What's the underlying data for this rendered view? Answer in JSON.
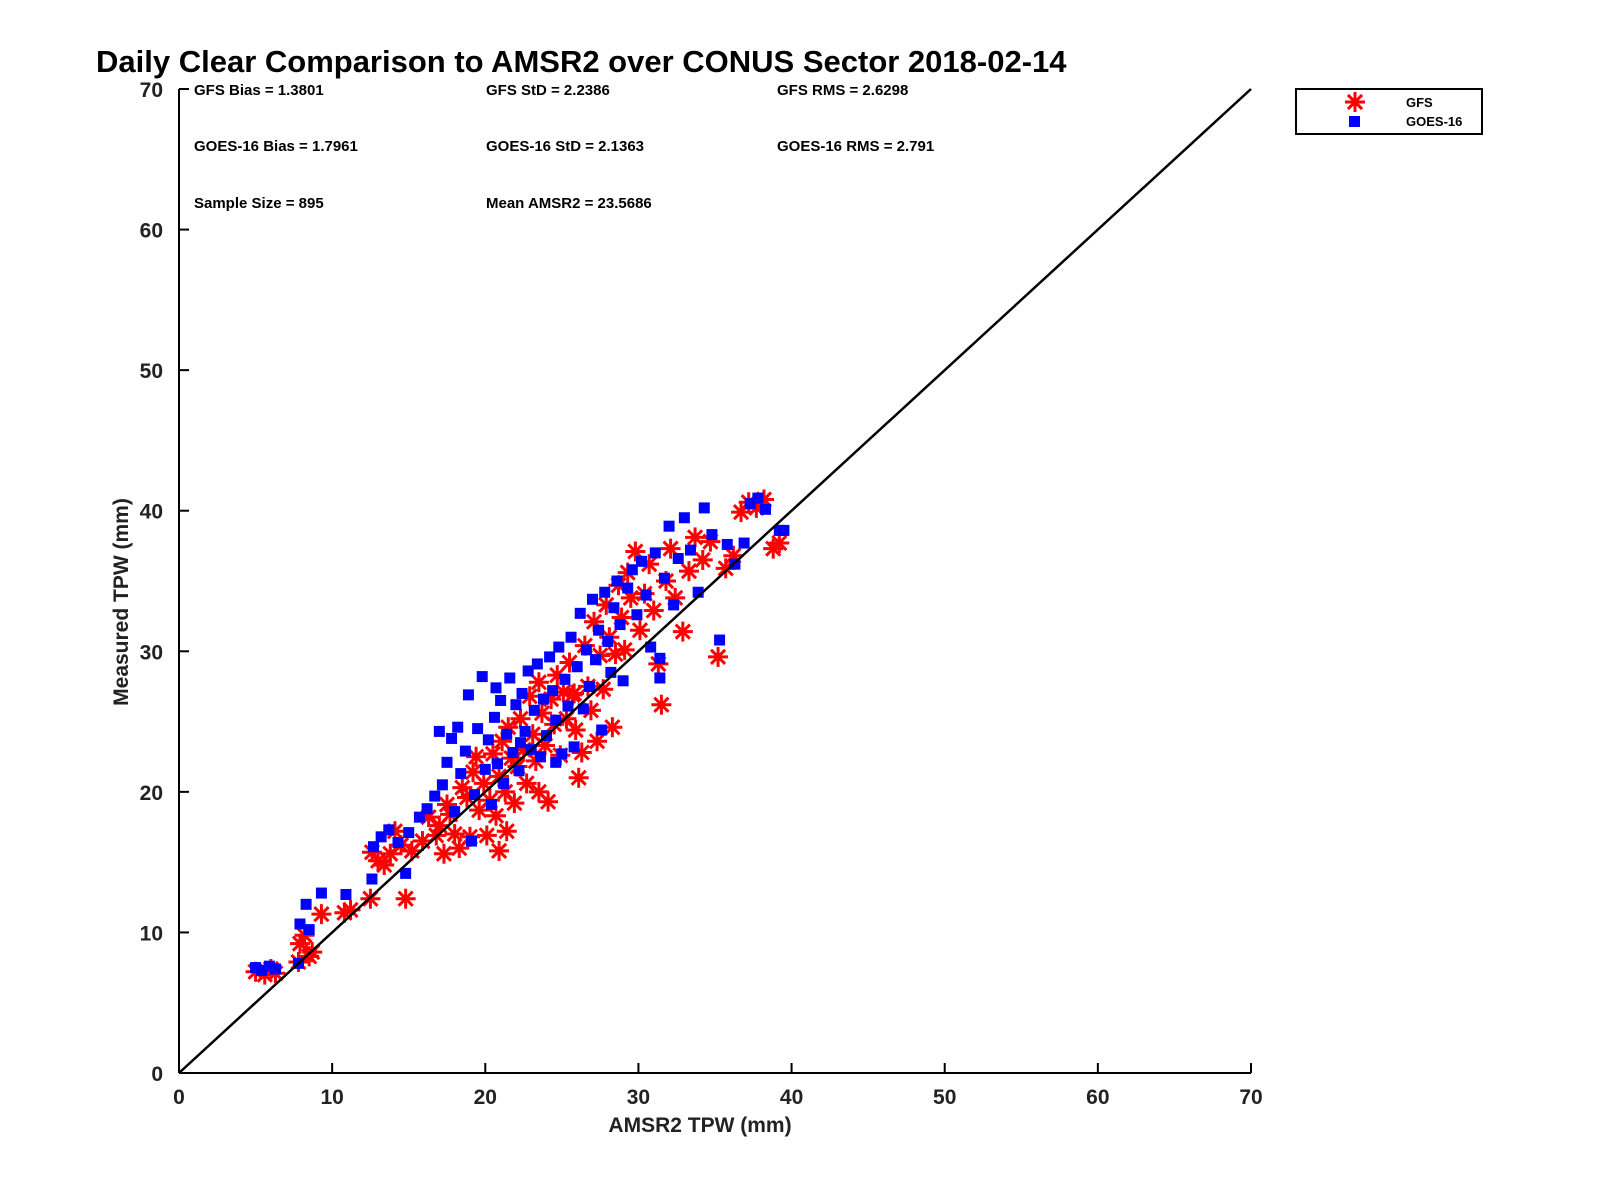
{
  "chart_data": {
    "type": "scatter",
    "title": "Daily Clear Comparison to AMSR2 over CONUS Sector 2018-02-14",
    "xlabel": "AMSR2 TPW (mm)",
    "ylabel": "Measured TPW (mm)",
    "xlim": [
      0,
      70
    ],
    "ylim": [
      0,
      70
    ],
    "xticks": [
      "0",
      "10",
      "20",
      "30",
      "40",
      "50",
      "60",
      "70"
    ],
    "yticks": [
      "0",
      "10",
      "20",
      "30",
      "40",
      "50",
      "60",
      "70"
    ],
    "grid": false,
    "legend_position": "outside-top-right",
    "reference_line": {
      "from": [
        0,
        0
      ],
      "to": [
        70,
        70
      ],
      "color": "#000000"
    },
    "annotations": [
      "GFS Bias = 1.3801",
      "GFS StD = 2.2386",
      "GFS RMS = 2.6298",
      "GOES-16 Bias = 1.7961",
      "GOES-16 StD = 2.1363",
      "GOES-16 RMS = 2.791",
      "Sample Size = 895",
      "Mean AMSR2 = 23.5686"
    ],
    "series": [
      {
        "name": "GFS",
        "marker": "asterisk",
        "color": "#ff0000",
        "points": [
          [
            5.0,
            7.2
          ],
          [
            5.6,
            7.0
          ],
          [
            6.0,
            7.4
          ],
          [
            6.3,
            7.1
          ],
          [
            7.8,
            7.9
          ],
          [
            7.9,
            9.2
          ],
          [
            8.2,
            9.8
          ],
          [
            8.5,
            8.3
          ],
          [
            8.7,
            8.6
          ],
          [
            9.3,
            11.3
          ],
          [
            10.8,
            11.4
          ],
          [
            11.2,
            11.6
          ],
          [
            12.5,
            12.4
          ],
          [
            14.8,
            12.4
          ],
          [
            12.6,
            15.7
          ],
          [
            13.0,
            15.1
          ],
          [
            13.4,
            14.8
          ],
          [
            13.8,
            15.6
          ],
          [
            14.1,
            17.2
          ],
          [
            14.5,
            16.2
          ],
          [
            15.2,
            15.8
          ],
          [
            15.9,
            16.5
          ],
          [
            16.3,
            18.2
          ],
          [
            16.8,
            16.9
          ],
          [
            17.0,
            17.6
          ],
          [
            17.3,
            15.6
          ],
          [
            17.5,
            19.1
          ],
          [
            17.7,
            18.4
          ],
          [
            18.0,
            17.0
          ],
          [
            18.3,
            16.0
          ],
          [
            18.5,
            20.3
          ],
          [
            18.8,
            19.6
          ],
          [
            19.0,
            16.8
          ],
          [
            19.2,
            21.4
          ],
          [
            19.4,
            22.5
          ],
          [
            19.6,
            18.7
          ],
          [
            19.9,
            20.6
          ],
          [
            20.1,
            16.9
          ],
          [
            20.3,
            19.4
          ],
          [
            20.5,
            22.7
          ],
          [
            20.7,
            18.3
          ],
          [
            20.9,
            21.1
          ],
          [
            21.1,
            23.6
          ],
          [
            21.3,
            20.0
          ],
          [
            21.5,
            24.6
          ],
          [
            21.7,
            22.4
          ],
          [
            21.9,
            19.2
          ],
          [
            22.1,
            21.8
          ],
          [
            22.3,
            25.2
          ],
          [
            22.5,
            23.0
          ],
          [
            22.7,
            20.6
          ],
          [
            22.9,
            26.8
          ],
          [
            23.1,
            24.1
          ],
          [
            23.3,
            22.2
          ],
          [
            23.5,
            27.8
          ],
          [
            23.7,
            25.6
          ],
          [
            23.9,
            23.3
          ],
          [
            24.1,
            19.3
          ],
          [
            24.3,
            26.6
          ],
          [
            24.5,
            24.8
          ],
          [
            24.7,
            28.3
          ],
          [
            24.9,
            22.6
          ],
          [
            25.1,
            27.1
          ],
          [
            25.3,
            25.2
          ],
          [
            25.5,
            29.2
          ],
          [
            25.7,
            26.9
          ],
          [
            25.9,
            24.4
          ],
          [
            26.1,
            21.0
          ],
          [
            26.3,
            22.8
          ],
          [
            26.5,
            30.4
          ],
          [
            26.7,
            27.5
          ],
          [
            26.9,
            25.8
          ],
          [
            27.1,
            32.1
          ],
          [
            27.3,
            23.6
          ],
          [
            27.5,
            29.7
          ],
          [
            27.7,
            27.3
          ],
          [
            27.9,
            33.3
          ],
          [
            28.1,
            31.0
          ],
          [
            28.3,
            24.6
          ],
          [
            28.5,
            29.8
          ],
          [
            28.7,
            34.7
          ],
          [
            28.9,
            32.4
          ],
          [
            29.1,
            30.1
          ],
          [
            29.3,
            35.6
          ],
          [
            29.5,
            33.8
          ],
          [
            29.8,
            37.1
          ],
          [
            30.1,
            31.5
          ],
          [
            30.4,
            34.1
          ],
          [
            30.7,
            36.2
          ],
          [
            31.0,
            32.9
          ],
          [
            31.3,
            29.1
          ],
          [
            31.5,
            26.2
          ],
          [
            31.8,
            35.0
          ],
          [
            32.1,
            37.3
          ],
          [
            32.4,
            33.8
          ],
          [
            32.9,
            31.4
          ],
          [
            33.3,
            35.7
          ],
          [
            33.7,
            38.1
          ],
          [
            34.2,
            36.5
          ],
          [
            34.7,
            37.8
          ],
          [
            35.2,
            29.6
          ],
          [
            35.7,
            35.9
          ],
          [
            36.2,
            36.8
          ],
          [
            36.7,
            39.9
          ],
          [
            37.2,
            40.6
          ],
          [
            37.7,
            40.2
          ],
          [
            38.2,
            40.8
          ],
          [
            38.8,
            37.3
          ],
          [
            39.2,
            37.7
          ],
          [
            21.4,
            17.2
          ],
          [
            20.9,
            15.8
          ],
          [
            23.5,
            20.0
          ],
          [
            25.8,
            27.0
          ]
        ]
      },
      {
        "name": "GOES-16",
        "marker": "square",
        "color": "#0000ff",
        "points": [
          [
            5.0,
            7.5
          ],
          [
            5.4,
            7.3
          ],
          [
            5.9,
            7.6
          ],
          [
            6.3,
            7.4
          ],
          [
            7.8,
            7.8
          ],
          [
            7.9,
            10.6
          ],
          [
            8.3,
            12.0
          ],
          [
            8.5,
            10.2
          ],
          [
            9.3,
            12.8
          ],
          [
            10.9,
            12.7
          ],
          [
            12.6,
            13.8
          ],
          [
            14.8,
            14.2
          ],
          [
            12.7,
            16.1
          ],
          [
            13.2,
            16.8
          ],
          [
            13.7,
            17.3
          ],
          [
            14.3,
            16.4
          ],
          [
            15.0,
            17.1
          ],
          [
            15.7,
            18.2
          ],
          [
            16.2,
            18.8
          ],
          [
            16.7,
            19.7
          ],
          [
            17.0,
            24.3
          ],
          [
            17.2,
            20.5
          ],
          [
            17.5,
            22.1
          ],
          [
            17.8,
            23.8
          ],
          [
            18.0,
            18.6
          ],
          [
            18.2,
            24.6
          ],
          [
            18.4,
            21.3
          ],
          [
            18.7,
            22.9
          ],
          [
            18.9,
            26.9
          ],
          [
            19.1,
            16.5
          ],
          [
            19.3,
            19.8
          ],
          [
            19.5,
            24.5
          ],
          [
            19.8,
            28.2
          ],
          [
            20.0,
            21.6
          ],
          [
            20.2,
            23.7
          ],
          [
            20.4,
            19.1
          ],
          [
            20.6,
            25.3
          ],
          [
            20.8,
            22.0
          ],
          [
            21.0,
            26.5
          ],
          [
            21.2,
            20.6
          ],
          [
            21.4,
            24.1
          ],
          [
            21.6,
            28.1
          ],
          [
            21.8,
            22.8
          ],
          [
            22.0,
            26.2
          ],
          [
            22.2,
            21.5
          ],
          [
            22.4,
            27.0
          ],
          [
            22.6,
            24.3
          ],
          [
            22.8,
            28.6
          ],
          [
            23.0,
            23.0
          ],
          [
            23.2,
            25.8
          ],
          [
            23.4,
            29.1
          ],
          [
            23.6,
            22.5
          ],
          [
            23.8,
            26.6
          ],
          [
            24.0,
            24.0
          ],
          [
            24.2,
            29.6
          ],
          [
            24.4,
            27.2
          ],
          [
            24.6,
            25.1
          ],
          [
            24.8,
            30.3
          ],
          [
            25.0,
            22.7
          ],
          [
            25.2,
            28.0
          ],
          [
            25.4,
            26.1
          ],
          [
            25.6,
            31.0
          ],
          [
            25.8,
            23.2
          ],
          [
            26.0,
            28.9
          ],
          [
            26.2,
            32.7
          ],
          [
            26.4,
            25.9
          ],
          [
            26.6,
            30.1
          ],
          [
            26.8,
            27.5
          ],
          [
            27.0,
            33.7
          ],
          [
            27.2,
            29.4
          ],
          [
            27.4,
            31.5
          ],
          [
            27.6,
            24.4
          ],
          [
            27.8,
            34.2
          ],
          [
            28.0,
            30.7
          ],
          [
            28.2,
            28.5
          ],
          [
            28.4,
            33.1
          ],
          [
            28.6,
            35.0
          ],
          [
            28.8,
            31.9
          ],
          [
            29.0,
            27.9
          ],
          [
            29.3,
            34.5
          ],
          [
            29.6,
            35.8
          ],
          [
            29.9,
            32.6
          ],
          [
            30.2,
            36.4
          ],
          [
            30.5,
            34.0
          ],
          [
            30.8,
            30.3
          ],
          [
            31.1,
            37.0
          ],
          [
            31.4,
            29.5
          ],
          [
            31.4,
            28.1
          ],
          [
            31.7,
            35.2
          ],
          [
            32.0,
            38.9
          ],
          [
            32.3,
            33.3
          ],
          [
            32.6,
            36.6
          ],
          [
            33.0,
            39.5
          ],
          [
            33.4,
            37.2
          ],
          [
            33.9,
            34.2
          ],
          [
            34.3,
            40.2
          ],
          [
            34.8,
            38.3
          ],
          [
            35.3,
            30.8
          ],
          [
            35.8,
            37.6
          ],
          [
            36.3,
            36.2
          ],
          [
            36.9,
            37.7
          ],
          [
            37.3,
            40.5
          ],
          [
            37.8,
            40.9
          ],
          [
            38.3,
            40.1
          ],
          [
            39.2,
            38.6
          ],
          [
            39.5,
            38.6
          ],
          [
            22.3,
            23.5
          ],
          [
            24.6,
            22.1
          ],
          [
            20.7,
            27.4
          ]
        ]
      }
    ]
  }
}
